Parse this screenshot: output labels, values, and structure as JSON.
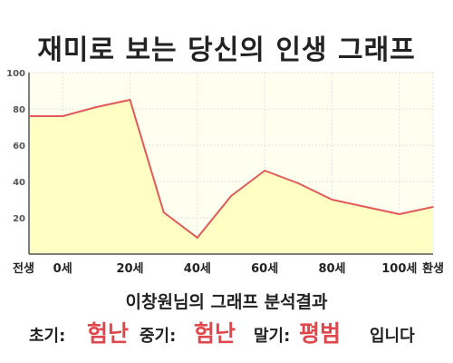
{
  "title": "재미로 보는 당신의 인생 그래프",
  "analysis_title": "이창원님의 그래프 분석결과",
  "summary": {
    "early_label": "초기:",
    "early_value": "험난",
    "middle_label": "중기:",
    "middle_value": "험난",
    "late_label": "말기:",
    "late_value": "평범",
    "ending": "입니다"
  },
  "colors": {
    "line": "#e05a5a",
    "fill": "#ffffc4",
    "plot_background": "#fffff0",
    "emphasis": "#e0474c"
  },
  "chart_data": {
    "type": "area",
    "x": [
      -10,
      0,
      10,
      20,
      30,
      40,
      50,
      60,
      70,
      80,
      90,
      100,
      110
    ],
    "values": [
      76,
      76,
      81,
      85,
      23,
      9,
      32,
      46,
      39,
      30,
      26,
      22,
      26
    ],
    "x_ticks": [
      {
        "x": -10,
        "label": "전생"
      },
      {
        "x": 0,
        "label": "0세"
      },
      {
        "x": 20,
        "label": "20세"
      },
      {
        "x": 40,
        "label": "40세"
      },
      {
        "x": 60,
        "label": "60세"
      },
      {
        "x": 80,
        "label": "80세"
      },
      {
        "x": 100,
        "label": "100세"
      },
      {
        "x": 110,
        "label": "환생"
      }
    ],
    "y_ticks": [
      {
        "y": 20,
        "label": "20"
      },
      {
        "y": 40,
        "label": "40"
      },
      {
        "y": 60,
        "label": "60"
      },
      {
        "y": 80,
        "label": "80"
      },
      {
        "y": 100,
        "label": "100"
      }
    ],
    "xlim": [
      -10,
      110
    ],
    "ylim": [
      0,
      100
    ],
    "grid": true,
    "xlabel": "",
    "ylabel": ""
  }
}
